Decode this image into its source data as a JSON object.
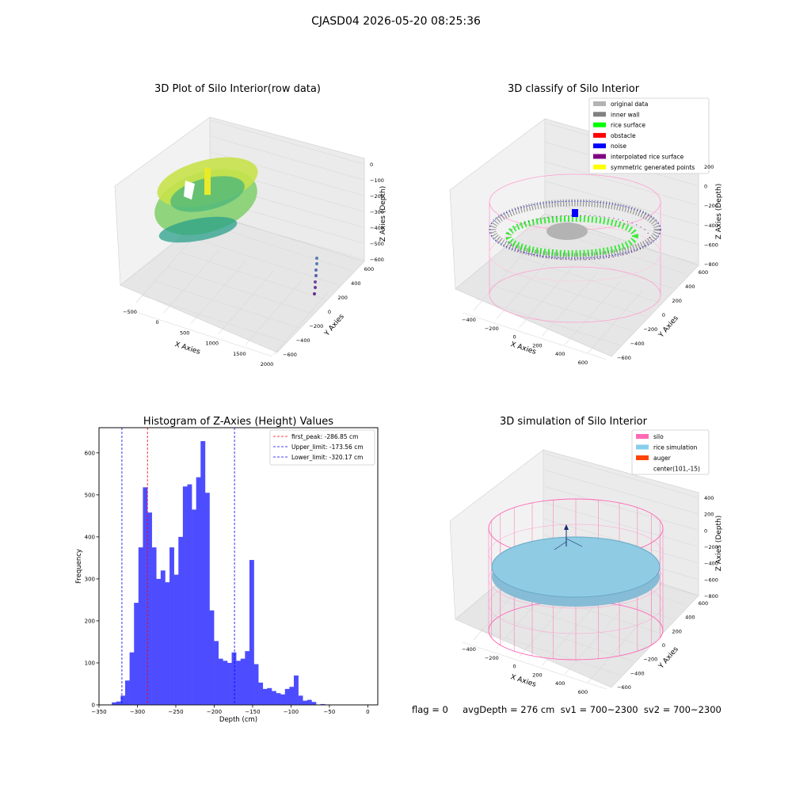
{
  "figure": {
    "suptitle": "CJASD04 2026-05-20 08:25:36",
    "footer": "flag = 0     avgDepth = 276 cm  sv1 = 700~2300  sv2 = 700~2300"
  },
  "colors": {
    "hist_bar": "#4d4dff",
    "first_peak": "#ff0000",
    "limit_line": "#0000ff",
    "original_data": "#b3b3b3",
    "inner_wall": "#808080",
    "rice_surface": "#00ff00",
    "obstacle": "#ff0000",
    "noise": "#0000ff",
    "interpolated_rice_surface": "#800080",
    "symmetric_generated_points": "#ffff00",
    "silo": "#ff69b4",
    "rice_simulation": "#87ceeb",
    "auger": "#ff4500"
  },
  "chart_data": [
    {
      "id": "raw",
      "type": "scatter",
      "title": "3D Plot of Silo Interior(row data)",
      "xlabel": "X Axies",
      "ylabel": "Y Axies",
      "zlabel": "Z Axies (Depth)",
      "xticks": [
        "−500",
        "0",
        "500",
        "1000",
        "1500",
        "2000"
      ],
      "yticks": [
        "600",
        "400",
        "200",
        "0",
        "−200",
        "−400",
        "−600"
      ],
      "zticks": [
        "0",
        "−100",
        "−200",
        "−300",
        "−400",
        "−500",
        "−600"
      ],
      "grid": true
    },
    {
      "id": "classify",
      "type": "scatter",
      "title": "3D classify of Silo Interior",
      "xlabel": "X Axies",
      "ylabel": "Y Axies",
      "zlabel": "Z Axies (Depth)",
      "xticks": [
        "−400",
        "−200",
        "0",
        "200",
        "400",
        "600"
      ],
      "yticks": [
        "600",
        "400",
        "200",
        "0",
        "−200",
        "−400",
        "−600"
      ],
      "zticks": [
        "200",
        "0",
        "−200",
        "−400",
        "−600",
        "−800"
      ],
      "legend": [
        {
          "label": "original data",
          "color": "#b3b3b3"
        },
        {
          "label": "inner wall",
          "color": "#808080"
        },
        {
          "label": "rice surface",
          "color": "#00ff00"
        },
        {
          "label": "obstacle",
          "color": "#ff0000"
        },
        {
          "label": "noise",
          "color": "#0000ff"
        },
        {
          "label": "interpolated rice surface",
          "color": "#800080"
        },
        {
          "label": "symmetric generated points",
          "color": "#ffff00"
        }
      ],
      "legend_loc": "upper right",
      "grid": true
    },
    {
      "id": "hist",
      "type": "bar",
      "title": "Histogram of Z-Axies (Height) Values",
      "xlabel": "Depth (cm)",
      "ylabel": "Frequency",
      "xlim": [
        -350,
        13
      ],
      "ylim": [
        0,
        660
      ],
      "bin_edges_start": -333.3,
      "bin_width": 5.78,
      "counts": [
        6,
        8,
        22,
        58,
        125,
        243,
        375,
        518,
        458,
        375,
        300,
        320,
        292,
        375,
        310,
        400,
        520,
        525,
        465,
        542,
        628,
        505,
        225,
        152,
        110,
        105,
        100,
        125,
        105,
        110,
        128,
        345,
        97,
        53,
        38,
        40,
        33,
        28,
        25,
        38,
        43,
        70,
        22,
        10,
        12,
        7,
        0,
        2,
        0
      ],
      "xticks": [
        -350,
        -300,
        -250,
        -200,
        -150,
        -100,
        -50,
        0
      ],
      "xtick_labels": [
        "−350",
        "−300",
        "−250",
        "−200",
        "−150",
        "−100",
        "−50",
        "0"
      ],
      "yticks": [
        0,
        100,
        200,
        300,
        400,
        500,
        600
      ],
      "ytick_labels": [
        "0",
        "100",
        "200",
        "300",
        "400",
        "500",
        "600"
      ],
      "vlines": [
        {
          "label": "first_peak: -286.85 cm",
          "x": -286.85,
          "color": "#ff0000"
        },
        {
          "label": "Upper_limit: -173.56 cm",
          "x": -173.56,
          "color": "#0000ff"
        },
        {
          "label": "Lower_limit: -320.17 cm",
          "x": -320.17,
          "color": "#0000ff"
        }
      ],
      "legend_loc": "upper right"
    },
    {
      "id": "sim",
      "type": "scatter",
      "title": "3D simulation of Silo Interior",
      "xlabel": "X Axies",
      "ylabel": "Y Axies",
      "zlabel": "Z Axies (Depth)",
      "xticks": [
        "−400",
        "−200",
        "0",
        "200",
        "400",
        "600"
      ],
      "yticks": [
        "600",
        "400",
        "200",
        "0",
        "−200",
        "−400",
        "−600"
      ],
      "zticks": [
        "400",
        "200",
        "0",
        "−200",
        "−400",
        "−600",
        "−800"
      ],
      "legend": [
        {
          "label": "silo",
          "color": "#ff69b4"
        },
        {
          "label": "rice simulation",
          "color": "#87ceeb"
        },
        {
          "label": "auger",
          "color": "#ff4500"
        },
        {
          "label": "center(101,-15)",
          "color": ""
        }
      ],
      "legend_loc": "upper right",
      "grid": true
    }
  ]
}
